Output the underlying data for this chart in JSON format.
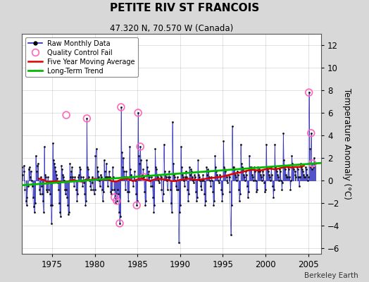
{
  "title": "PETITE RIV ST FRANCOIS",
  "subtitle": "47.320 N, 70.570 W (Canada)",
  "ylabel": "Temperature Anomaly (°C)",
  "attribution": "Berkeley Earth",
  "xlim": [
    1971.5,
    2006.5
  ],
  "ylim": [
    -6.5,
    13.0
  ],
  "yticks": [
    -6,
    -4,
    -2,
    0,
    2,
    4,
    6,
    8,
    10,
    12
  ],
  "xticks": [
    1975,
    1980,
    1985,
    1990,
    1995,
    2000,
    2005
  ],
  "bg_color": "#d8d8d8",
  "plot_bg": "#ffffff",
  "raw_color": "#2222bb",
  "raw_marker_color": "#111111",
  "qc_color": "#ff66bb",
  "moving_avg_color": "#dd0000",
  "trend_color": "#00bb00",
  "raw_data": [
    [
      1971.08,
      0.9
    ],
    [
      1971.17,
      1.6
    ],
    [
      1971.25,
      0.8
    ],
    [
      1971.33,
      0.5
    ],
    [
      1971.42,
      -0.3
    ],
    [
      1971.5,
      1.2
    ],
    [
      1971.58,
      0.5
    ],
    [
      1971.67,
      1.3
    ],
    [
      1971.75,
      0.8
    ],
    [
      1971.83,
      -0.8
    ],
    [
      1971.92,
      -1.8
    ],
    [
      1972.0,
      -2.2
    ],
    [
      1972.08,
      -1.5
    ],
    [
      1972.17,
      -0.5
    ],
    [
      1972.25,
      1.0
    ],
    [
      1972.33,
      1.2
    ],
    [
      1972.42,
      0.3
    ],
    [
      1972.5,
      0.8
    ],
    [
      1972.58,
      0.0
    ],
    [
      1972.67,
      -0.5
    ],
    [
      1972.75,
      -1.5
    ],
    [
      1972.83,
      -2.3
    ],
    [
      1972.92,
      -2.8
    ],
    [
      1973.0,
      -2.0
    ],
    [
      1973.08,
      2.2
    ],
    [
      1973.17,
      0.8
    ],
    [
      1973.25,
      1.3
    ],
    [
      1973.33,
      1.5
    ],
    [
      1973.42,
      0.2
    ],
    [
      1973.5,
      -0.8
    ],
    [
      1973.58,
      -1.2
    ],
    [
      1973.67,
      0.3
    ],
    [
      1973.75,
      -0.5
    ],
    [
      1973.83,
      -1.2
    ],
    [
      1973.92,
      -1.8
    ],
    [
      1974.0,
      -2.8
    ],
    [
      1974.08,
      3.0
    ],
    [
      1974.17,
      0.5
    ],
    [
      1974.25,
      0.3
    ],
    [
      1974.33,
      -0.8
    ],
    [
      1974.42,
      -1.0
    ],
    [
      1974.5,
      0.3
    ],
    [
      1974.58,
      -0.8
    ],
    [
      1974.67,
      -0.2
    ],
    [
      1974.75,
      -1.2
    ],
    [
      1974.83,
      -2.2
    ],
    [
      1974.92,
      -3.8
    ],
    [
      1975.0,
      -2.2
    ],
    [
      1975.08,
      3.3
    ],
    [
      1975.17,
      1.8
    ],
    [
      1975.25,
      1.5
    ],
    [
      1975.33,
      1.2
    ],
    [
      1975.42,
      0.8
    ],
    [
      1975.5,
      0.5
    ],
    [
      1975.58,
      0.2
    ],
    [
      1975.67,
      -0.2
    ],
    [
      1975.75,
      -0.8
    ],
    [
      1975.83,
      -2.0
    ],
    [
      1975.92,
      -2.8
    ],
    [
      1976.0,
      -3.2
    ],
    [
      1976.08,
      1.3
    ],
    [
      1976.17,
      1.0
    ],
    [
      1976.25,
      0.5
    ],
    [
      1976.33,
      0.3
    ],
    [
      1976.42,
      0.0
    ],
    [
      1976.5,
      -0.8
    ],
    [
      1976.58,
      -1.2
    ],
    [
      1976.67,
      -0.8
    ],
    [
      1976.75,
      -1.5
    ],
    [
      1976.83,
      -2.2
    ],
    [
      1976.92,
      -3.0
    ],
    [
      1977.0,
      -2.8
    ],
    [
      1977.08,
      1.5
    ],
    [
      1977.17,
      0.3
    ],
    [
      1977.25,
      0.8
    ],
    [
      1977.33,
      1.2
    ],
    [
      1977.42,
      0.3
    ],
    [
      1977.5,
      0.0
    ],
    [
      1977.58,
      -0.5
    ],
    [
      1977.67,
      0.3
    ],
    [
      1977.75,
      0.0
    ],
    [
      1977.83,
      -0.8
    ],
    [
      1977.92,
      -1.8
    ],
    [
      1978.0,
      -1.2
    ],
    [
      1978.08,
      0.3
    ],
    [
      1978.17,
      0.5
    ],
    [
      1978.25,
      1.2
    ],
    [
      1978.33,
      1.0
    ],
    [
      1978.42,
      0.3
    ],
    [
      1978.5,
      0.0
    ],
    [
      1978.58,
      -0.5
    ],
    [
      1978.67,
      0.3
    ],
    [
      1978.75,
      -0.2
    ],
    [
      1978.83,
      -1.2
    ],
    [
      1978.92,
      -2.2
    ],
    [
      1979.0,
      -1.8
    ],
    [
      1979.08,
      5.5
    ],
    [
      1979.17,
      1.2
    ],
    [
      1979.25,
      1.0
    ],
    [
      1979.33,
      0.3
    ],
    [
      1979.42,
      0.0
    ],
    [
      1979.5,
      -0.5
    ],
    [
      1979.58,
      -0.8
    ],
    [
      1979.67,
      0.3
    ],
    [
      1979.75,
      -0.2
    ],
    [
      1979.83,
      -0.8
    ],
    [
      1979.92,
      -1.2
    ],
    [
      1980.0,
      -0.8
    ],
    [
      1980.08,
      2.2
    ],
    [
      1980.17,
      2.8
    ],
    [
      1980.25,
      1.2
    ],
    [
      1980.33,
      0.8
    ],
    [
      1980.42,
      0.3
    ],
    [
      1980.5,
      0.0
    ],
    [
      1980.58,
      -0.5
    ],
    [
      1980.67,
      0.5
    ],
    [
      1980.75,
      0.3
    ],
    [
      1980.83,
      -0.8
    ],
    [
      1980.92,
      -1.8
    ],
    [
      1981.0,
      -1.0
    ],
    [
      1981.08,
      1.8
    ],
    [
      1981.17,
      0.8
    ],
    [
      1981.25,
      0.3
    ],
    [
      1981.33,
      1.5
    ],
    [
      1981.42,
      0.3
    ],
    [
      1981.5,
      -0.5
    ],
    [
      1981.58,
      0.3
    ],
    [
      1981.67,
      0.8
    ],
    [
      1981.75,
      0.3
    ],
    [
      1981.83,
      -1.0
    ],
    [
      1981.92,
      -1.2
    ],
    [
      1982.0,
      -0.8
    ],
    [
      1982.08,
      1.2
    ],
    [
      1982.17,
      0.3
    ],
    [
      1982.25,
      -0.8
    ],
    [
      1982.33,
      -1.5
    ],
    [
      1982.42,
      -2.0
    ],
    [
      1982.5,
      -1.2
    ],
    [
      1982.58,
      -1.8
    ],
    [
      1982.67,
      -0.8
    ],
    [
      1982.75,
      -1.2
    ],
    [
      1982.83,
      -2.8
    ],
    [
      1982.92,
      -3.8
    ],
    [
      1983.0,
      -3.2
    ],
    [
      1983.08,
      6.5
    ],
    [
      1983.17,
      2.5
    ],
    [
      1983.25,
      1.2
    ],
    [
      1983.33,
      2.0
    ],
    [
      1983.42,
      0.8
    ],
    [
      1983.5,
      0.3
    ],
    [
      1983.58,
      -0.8
    ],
    [
      1983.67,
      0.8
    ],
    [
      1983.75,
      0.3
    ],
    [
      1983.83,
      -1.0
    ],
    [
      1983.92,
      -1.8
    ],
    [
      1984.0,
      -1.0
    ],
    [
      1984.08,
      3.0
    ],
    [
      1984.17,
      1.0
    ],
    [
      1984.25,
      0.5
    ],
    [
      1984.33,
      0.3
    ],
    [
      1984.42,
      0.0
    ],
    [
      1984.5,
      -0.5
    ],
    [
      1984.58,
      0.3
    ],
    [
      1984.67,
      0.8
    ],
    [
      1984.75,
      0.0
    ],
    [
      1984.83,
      -1.2
    ],
    [
      1984.92,
      -2.2
    ],
    [
      1985.0,
      -1.8
    ],
    [
      1985.08,
      6.0
    ],
    [
      1985.17,
      2.2
    ],
    [
      1985.25,
      1.5
    ],
    [
      1985.33,
      3.0
    ],
    [
      1985.42,
      1.8
    ],
    [
      1985.5,
      0.5
    ],
    [
      1985.58,
      0.2
    ],
    [
      1985.67,
      1.0
    ],
    [
      1985.75,
      0.3
    ],
    [
      1985.83,
      -1.0
    ],
    [
      1985.92,
      -2.2
    ],
    [
      1986.0,
      -1.8
    ],
    [
      1986.08,
      1.8
    ],
    [
      1986.17,
      1.2
    ],
    [
      1986.25,
      0.5
    ],
    [
      1986.33,
      0.8
    ],
    [
      1986.42,
      0.3
    ],
    [
      1986.5,
      0.0
    ],
    [
      1986.58,
      -0.5
    ],
    [
      1986.67,
      0.3
    ],
    [
      1986.75,
      -0.5
    ],
    [
      1986.83,
      -1.5
    ],
    [
      1986.92,
      -2.8
    ],
    [
      1987.0,
      -2.2
    ],
    [
      1987.08,
      2.8
    ],
    [
      1987.17,
      1.2
    ],
    [
      1987.25,
      1.0
    ],
    [
      1987.33,
      0.5
    ],
    [
      1987.42,
      0.3
    ],
    [
      1987.5,
      0.0
    ],
    [
      1987.58,
      -0.2
    ],
    [
      1987.67,
      0.5
    ],
    [
      1987.75,
      0.3
    ],
    [
      1987.83,
      -0.8
    ],
    [
      1987.92,
      -1.8
    ],
    [
      1988.0,
      -1.2
    ],
    [
      1988.08,
      3.2
    ],
    [
      1988.17,
      0.8
    ],
    [
      1988.25,
      0.5
    ],
    [
      1988.33,
      0.3
    ],
    [
      1988.42,
      0.0
    ],
    [
      1988.5,
      -0.8
    ],
    [
      1988.58,
      0.3
    ],
    [
      1988.67,
      0.8
    ],
    [
      1988.75,
      0.3
    ],
    [
      1988.83,
      -0.8
    ],
    [
      1988.92,
      -2.0
    ],
    [
      1989.0,
      -2.8
    ],
    [
      1989.08,
      5.2
    ],
    [
      1989.17,
      1.5
    ],
    [
      1989.25,
      0.5
    ],
    [
      1989.33,
      0.3
    ],
    [
      1989.42,
      0.0
    ],
    [
      1989.5,
      -0.5
    ],
    [
      1989.58,
      -0.8
    ],
    [
      1989.67,
      0.3
    ],
    [
      1989.75,
      -0.8
    ],
    [
      1989.83,
      -5.5
    ],
    [
      1989.92,
      -2.8
    ],
    [
      1990.0,
      -2.2
    ],
    [
      1990.08,
      3.0
    ],
    [
      1990.17,
      1.2
    ],
    [
      1990.25,
      0.5
    ],
    [
      1990.33,
      0.3
    ],
    [
      1990.42,
      0.0
    ],
    [
      1990.5,
      -0.5
    ],
    [
      1990.58,
      0.3
    ],
    [
      1990.67,
      0.8
    ],
    [
      1990.75,
      0.3
    ],
    [
      1990.83,
      -0.8
    ],
    [
      1990.92,
      -1.8
    ],
    [
      1991.0,
      -1.2
    ],
    [
      1991.08,
      1.2
    ],
    [
      1991.17,
      0.5
    ],
    [
      1991.25,
      1.0
    ],
    [
      1991.33,
      0.8
    ],
    [
      1991.42,
      0.3
    ],
    [
      1991.5,
      0.0
    ],
    [
      1991.58,
      -0.2
    ],
    [
      1991.67,
      0.5
    ],
    [
      1991.75,
      0.3
    ],
    [
      1991.83,
      -1.0
    ],
    [
      1991.92,
      -1.8
    ],
    [
      1992.0,
      -1.5
    ],
    [
      1992.08,
      1.8
    ],
    [
      1992.17,
      0.5
    ],
    [
      1992.25,
      0.3
    ],
    [
      1992.33,
      0.0
    ],
    [
      1992.42,
      -0.5
    ],
    [
      1992.5,
      -0.8
    ],
    [
      1992.58,
      0.0
    ],
    [
      1992.67,
      0.5
    ],
    [
      1992.75,
      0.0
    ],
    [
      1992.83,
      -1.2
    ],
    [
      1992.92,
      -2.2
    ],
    [
      1993.0,
      -1.8
    ],
    [
      1993.08,
      1.2
    ],
    [
      1993.17,
      0.5
    ],
    [
      1993.25,
      1.0
    ],
    [
      1993.33,
      0.8
    ],
    [
      1993.42,
      0.3
    ],
    [
      1993.5,
      0.0
    ],
    [
      1993.58,
      -0.5
    ],
    [
      1993.67,
      0.3
    ],
    [
      1993.75,
      0.0
    ],
    [
      1993.83,
      -1.0
    ],
    [
      1993.92,
      -2.2
    ],
    [
      1994.0,
      -1.8
    ],
    [
      1994.08,
      2.2
    ],
    [
      1994.17,
      1.2
    ],
    [
      1994.25,
      0.8
    ],
    [
      1994.33,
      0.5
    ],
    [
      1994.42,
      0.3
    ],
    [
      1994.5,
      0.0
    ],
    [
      1994.58,
      -0.2
    ],
    [
      1994.67,
      0.5
    ],
    [
      1994.75,
      0.3
    ],
    [
      1994.83,
      -0.8
    ],
    [
      1994.92,
      -1.8
    ],
    [
      1995.0,
      -1.2
    ],
    [
      1995.08,
      3.5
    ],
    [
      1995.17,
      1.2
    ],
    [
      1995.25,
      1.0
    ],
    [
      1995.33,
      0.8
    ],
    [
      1995.42,
      0.3
    ],
    [
      1995.5,
      0.0
    ],
    [
      1995.58,
      -0.2
    ],
    [
      1995.67,
      0.5
    ],
    [
      1995.75,
      0.3
    ],
    [
      1995.83,
      -1.0
    ],
    [
      1995.92,
      -4.8
    ],
    [
      1996.0,
      -2.2
    ],
    [
      1996.08,
      4.8
    ],
    [
      1996.17,
      1.2
    ],
    [
      1996.25,
      1.2
    ],
    [
      1996.33,
      1.0
    ],
    [
      1996.42,
      0.5
    ],
    [
      1996.5,
      0.3
    ],
    [
      1996.58,
      0.0
    ],
    [
      1996.67,
      0.8
    ],
    [
      1996.75,
      0.5
    ],
    [
      1996.83,
      -0.8
    ],
    [
      1996.92,
      -1.8
    ],
    [
      1997.0,
      -1.2
    ],
    [
      1997.08,
      3.2
    ],
    [
      1997.17,
      1.5
    ],
    [
      1997.25,
      1.2
    ],
    [
      1997.33,
      1.0
    ],
    [
      1997.42,
      0.5
    ],
    [
      1997.5,
      0.3
    ],
    [
      1997.58,
      0.0
    ],
    [
      1997.67,
      0.8
    ],
    [
      1997.75,
      0.5
    ],
    [
      1997.83,
      -0.5
    ],
    [
      1997.92,
      -1.5
    ],
    [
      1998.0,
      -1.0
    ],
    [
      1998.08,
      2.2
    ],
    [
      1998.17,
      1.2
    ],
    [
      1998.25,
      1.0
    ],
    [
      1998.33,
      1.2
    ],
    [
      1998.42,
      0.5
    ],
    [
      1998.5,
      0.3
    ],
    [
      1998.58,
      0.0
    ],
    [
      1998.67,
      1.2
    ],
    [
      1998.75,
      0.8
    ],
    [
      1998.83,
      0.0
    ],
    [
      1998.92,
      -1.0
    ],
    [
      1999.0,
      -0.8
    ],
    [
      1999.08,
      1.2
    ],
    [
      1999.17,
      0.8
    ],
    [
      1999.25,
      1.0
    ],
    [
      1999.33,
      0.8
    ],
    [
      1999.42,
      0.5
    ],
    [
      1999.5,
      0.3
    ],
    [
      1999.58,
      0.0
    ],
    [
      1999.67,
      0.8
    ],
    [
      1999.75,
      0.5
    ],
    [
      1999.83,
      -0.2
    ],
    [
      1999.92,
      -1.0
    ],
    [
      2000.0,
      -0.8
    ],
    [
      2000.08,
      3.2
    ],
    [
      2000.17,
      1.2
    ],
    [
      2000.25,
      1.0
    ],
    [
      2000.33,
      0.8
    ],
    [
      2000.42,
      0.5
    ],
    [
      2000.5,
      0.3
    ],
    [
      2000.58,
      0.0
    ],
    [
      2000.67,
      1.2
    ],
    [
      2000.75,
      0.5
    ],
    [
      2000.83,
      -0.5
    ],
    [
      2000.92,
      -1.5
    ],
    [
      2001.0,
      -0.8
    ],
    [
      2001.08,
      3.2
    ],
    [
      2001.17,
      1.2
    ],
    [
      2001.25,
      1.0
    ],
    [
      2001.33,
      0.8
    ],
    [
      2001.42,
      0.5
    ],
    [
      2001.5,
      0.3
    ],
    [
      2001.58,
      0.0
    ],
    [
      2001.67,
      1.0
    ],
    [
      2001.75,
      0.8
    ],
    [
      2001.83,
      0.0
    ],
    [
      2001.92,
      -0.8
    ],
    [
      2002.0,
      -0.2
    ],
    [
      2002.08,
      4.2
    ],
    [
      2002.17,
      1.8
    ],
    [
      2002.25,
      1.2
    ],
    [
      2002.33,
      1.0
    ],
    [
      2002.42,
      0.5
    ],
    [
      2002.5,
      0.3
    ],
    [
      2002.58,
      0.3
    ],
    [
      2002.67,
      1.2
    ],
    [
      2002.75,
      1.0
    ],
    [
      2002.83,
      0.3
    ],
    [
      2002.92,
      -0.8
    ],
    [
      2003.0,
      0.0
    ],
    [
      2003.08,
      2.2
    ],
    [
      2003.17,
      1.5
    ],
    [
      2003.25,
      1.2
    ],
    [
      2003.33,
      1.0
    ],
    [
      2003.42,
      0.8
    ],
    [
      2003.5,
      0.5
    ],
    [
      2003.58,
      0.3
    ],
    [
      2003.67,
      1.2
    ],
    [
      2003.75,
      1.0
    ],
    [
      2003.83,
      0.3
    ],
    [
      2003.92,
      -0.5
    ],
    [
      2004.0,
      0.3
    ],
    [
      2004.08,
      1.5
    ],
    [
      2004.17,
      1.2
    ],
    [
      2004.25,
      1.0
    ],
    [
      2004.33,
      0.8
    ],
    [
      2004.42,
      0.5
    ],
    [
      2004.5,
      0.3
    ],
    [
      2004.58,
      0.3
    ],
    [
      2004.67,
      1.2
    ],
    [
      2004.75,
      1.0
    ],
    [
      2004.83,
      0.5
    ],
    [
      2004.92,
      0.0
    ],
    [
      2005.0,
      0.3
    ],
    [
      2005.08,
      7.8
    ],
    [
      2005.17,
      2.8
    ],
    [
      2005.25,
      1.2
    ],
    [
      2005.33,
      4.2
    ],
    [
      2005.42,
      1.0
    ],
    [
      2005.5,
      1.5
    ],
    [
      2005.58,
      1.2
    ],
    [
      2005.67,
      2.0
    ],
    [
      2005.75,
      1.5
    ],
    [
      2005.83,
      1.5
    ]
  ],
  "qc_fail_points": [
    [
      1976.67,
      5.8
    ],
    [
      1979.08,
      5.5
    ],
    [
      1982.33,
      -1.5
    ],
    [
      1982.58,
      -1.8
    ],
    [
      1982.92,
      -3.8
    ],
    [
      1983.08,
      6.5
    ],
    [
      1984.92,
      -2.2
    ],
    [
      1985.08,
      6.0
    ],
    [
      1985.33,
      3.0
    ],
    [
      1985.75,
      0.3
    ],
    [
      2005.08,
      7.8
    ],
    [
      2005.33,
      4.2
    ],
    [
      2005.5,
      1.5
    ]
  ],
  "moving_avg": [
    [
      1973.5,
      0.15
    ],
    [
      1974.0,
      0.05
    ],
    [
      1974.5,
      -0.15
    ],
    [
      1975.0,
      -0.1
    ],
    [
      1975.5,
      -0.05
    ],
    [
      1976.0,
      -0.1
    ],
    [
      1976.5,
      -0.15
    ],
    [
      1977.0,
      -0.05
    ],
    [
      1977.5,
      0.05
    ],
    [
      1978.0,
      -0.05
    ],
    [
      1978.5,
      -0.1
    ],
    [
      1979.0,
      0.1
    ],
    [
      1979.5,
      0.05
    ],
    [
      1980.0,
      0.15
    ],
    [
      1980.5,
      0.1
    ],
    [
      1981.0,
      0.05
    ],
    [
      1981.5,
      0.1
    ],
    [
      1982.0,
      -0.05
    ],
    [
      1982.5,
      -0.1
    ],
    [
      1983.0,
      0.05
    ],
    [
      1983.5,
      0.15
    ],
    [
      1984.0,
      0.1
    ],
    [
      1984.5,
      -0.05
    ],
    [
      1985.0,
      0.1
    ],
    [
      1985.5,
      0.15
    ],
    [
      1986.0,
      0.05
    ],
    [
      1986.5,
      -0.05
    ],
    [
      1987.0,
      0.1
    ],
    [
      1987.5,
      0.15
    ],
    [
      1988.0,
      0.1
    ],
    [
      1988.5,
      0.05
    ],
    [
      1989.0,
      -0.05
    ],
    [
      1989.5,
      -0.05
    ],
    [
      1990.0,
      0.05
    ],
    [
      1990.5,
      0.1
    ],
    [
      1991.0,
      0.15
    ],
    [
      1991.5,
      0.1
    ],
    [
      1992.0,
      0.05
    ],
    [
      1992.5,
      0.1
    ],
    [
      1993.0,
      0.15
    ],
    [
      1993.5,
      0.2
    ],
    [
      1994.0,
      0.25
    ],
    [
      1994.5,
      0.3
    ],
    [
      1995.0,
      0.35
    ],
    [
      1995.5,
      0.45
    ],
    [
      1996.0,
      0.55
    ],
    [
      1996.5,
      0.65
    ],
    [
      1997.0,
      0.7
    ],
    [
      1997.5,
      0.8
    ],
    [
      1998.0,
      0.9
    ],
    [
      1998.5,
      0.95
    ],
    [
      1999.0,
      0.9
    ],
    [
      1999.5,
      0.9
    ],
    [
      2000.0,
      1.0
    ],
    [
      2000.5,
      1.05
    ],
    [
      2001.0,
      1.0
    ],
    [
      2001.5,
      1.05
    ],
    [
      2002.0,
      1.15
    ],
    [
      2002.5,
      1.2
    ],
    [
      2003.0,
      1.15
    ],
    [
      2003.5,
      1.2
    ],
    [
      2004.0,
      1.2
    ],
    [
      2004.5,
      1.3
    ]
  ],
  "trend_line": [
    [
      1971.5,
      -0.42
    ],
    [
      2006.5,
      1.55
    ]
  ]
}
